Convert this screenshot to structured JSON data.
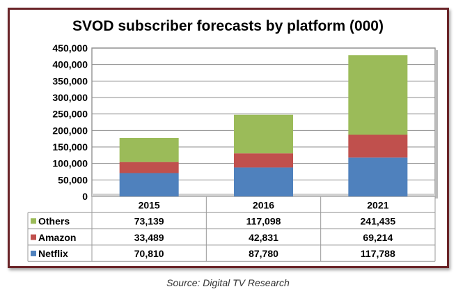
{
  "chart_data": {
    "type": "bar",
    "stacked": true,
    "title": "SVOD subscriber forecasts by platform (000)",
    "categories": [
      "2015",
      "2016",
      "2021"
    ],
    "series": [
      {
        "name": "Netflix",
        "color": "#4f81bd",
        "values": [
          70810,
          87780,
          117788
        ],
        "labels": [
          "70,810",
          "87,780",
          "117,788"
        ]
      },
      {
        "name": "Amazon",
        "color": "#c0504d",
        "values": [
          33489,
          42831,
          69214
        ],
        "labels": [
          "33,489",
          "42,831",
          "69,214"
        ]
      },
      {
        "name": "Others",
        "color": "#9bbb59",
        "values": [
          73139,
          117098,
          241435
        ],
        "labels": [
          "73,139",
          "117,098",
          "241,435"
        ]
      }
    ],
    "yticks": [
      "0",
      "50,000",
      "100,000",
      "150,000",
      "200,000",
      "250,000",
      "300,000",
      "350,000",
      "400,000",
      "450,000"
    ],
    "ylim": [
      0,
      450000
    ],
    "grid": true,
    "legend": "data-table"
  },
  "source": "Source: Digital TV Research"
}
